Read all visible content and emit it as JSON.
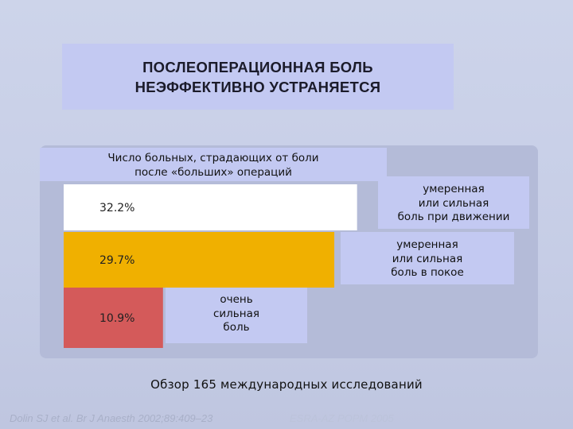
{
  "slide": {
    "title_line1": "ПОСЛЕОПЕРАЦИОННАЯ БОЛЬ",
    "title_line2": "НЕЭФФЕКТИВНО УСТРАНЯЕТСЯ",
    "subtitle_line1": "Число больных, страдающих от боли",
    "subtitle_line2": "после «больших» операций",
    "footer": "Обзор 165 международных исследований",
    "reference": "Dolin SJ et al. Br J Anaesth 2002;89:409–23",
    "organization": "ESRA-AZ POPM 2005"
  },
  "labels": {
    "movement": [
      "умеренная",
      "или сильная",
      "боль при движении"
    ],
    "rest": [
      "умеренная",
      "или сильная",
      "боль в покое"
    ],
    "severe": [
      "очень",
      "сильная",
      "боль"
    ]
  },
  "chart_data": {
    "type": "bar",
    "orientation": "horizontal",
    "title": "Число больных, страдающих от боли после «больших» операций",
    "categories": [
      "умеренная или сильная боль при движении",
      "умеренная или сильная боль в покое",
      "очень сильная боль"
    ],
    "values": [
      32.2,
      29.7,
      10.9
    ],
    "value_labels": [
      "32.2%",
      "29.7%",
      "10.9%"
    ],
    "colors": [
      "#ffffff",
      "#f0b000",
      "#d45a5a"
    ],
    "xlim": [
      0,
      34.5
    ],
    "grid": false,
    "legend": "none"
  }
}
